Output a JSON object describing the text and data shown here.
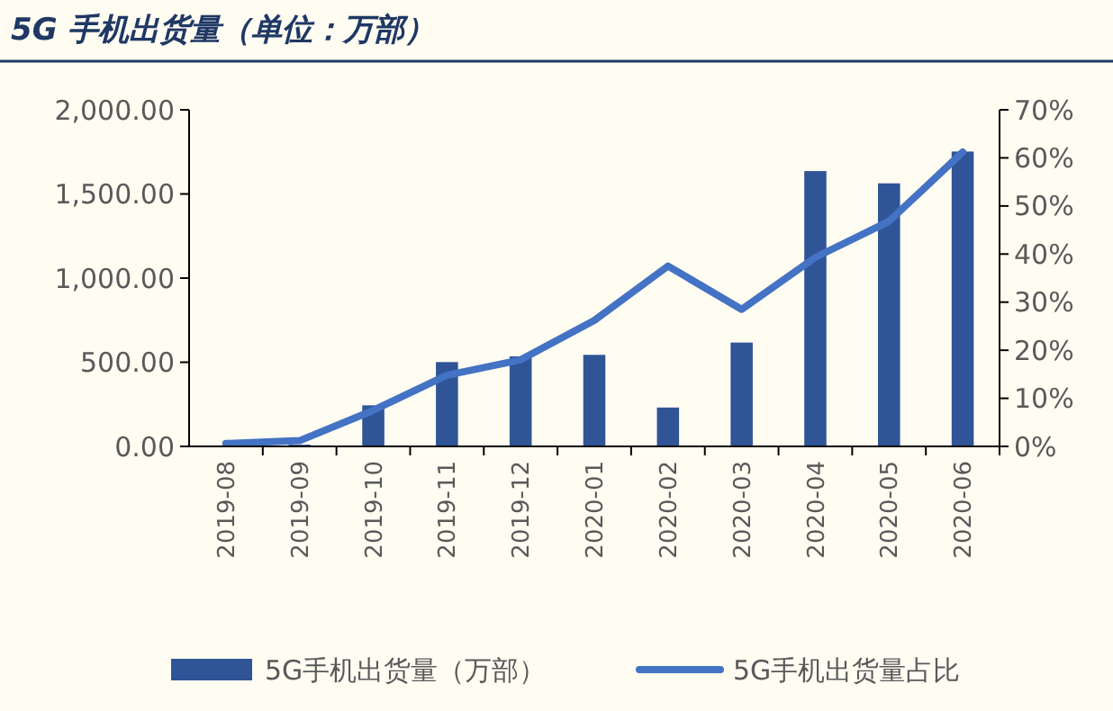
{
  "chart_data": {
    "type": "bar",
    "title": "5G 手机出货量（单位：万部）",
    "categories": [
      "2019-08",
      "2019-09",
      "2019-10",
      "2019-11",
      "2019-12",
      "2020-01",
      "2020-02",
      "2020-03",
      "2020-04",
      "2020-05",
      "2020-06"
    ],
    "series": [
      {
        "name": "5G手机出货量（万部）",
        "color": "#2f5597",
        "values": [
          5,
          10,
          244,
          501,
          535,
          544,
          231,
          617,
          1636,
          1563,
          1752
        ]
      },
      {
        "name": "5G手机出货量占比",
        "type": "line",
        "axis": "y2",
        "color": "#4472c4",
        "values": [
          0.6,
          1.2,
          7.5,
          14.8,
          18,
          26.2,
          37.5,
          28.5,
          39.3,
          46.8,
          61.2
        ]
      }
    ],
    "ylim": [
      0,
      2000
    ],
    "yticks": [
      {
        "value": 0,
        "label": "0.00"
      },
      {
        "value": 500,
        "label": "500.00"
      },
      {
        "value": 1000,
        "label": "1,000.00"
      },
      {
        "value": 1500,
        "label": "1,500.00"
      },
      {
        "value": 2000,
        "label": "2,000.00"
      }
    ],
    "y2lim": [
      0,
      70
    ],
    "y2ticks": [
      {
        "value": 0,
        "label": "0%"
      },
      {
        "value": 10,
        "label": "10%"
      },
      {
        "value": 20,
        "label": "20%"
      },
      {
        "value": 30,
        "label": "30%"
      },
      {
        "value": 40,
        "label": "40%"
      },
      {
        "value": 50,
        "label": "50%"
      },
      {
        "value": 60,
        "label": "60%"
      },
      {
        "value": 70,
        "label": "70%"
      }
    ],
    "legend": "bottom",
    "grid": false
  }
}
